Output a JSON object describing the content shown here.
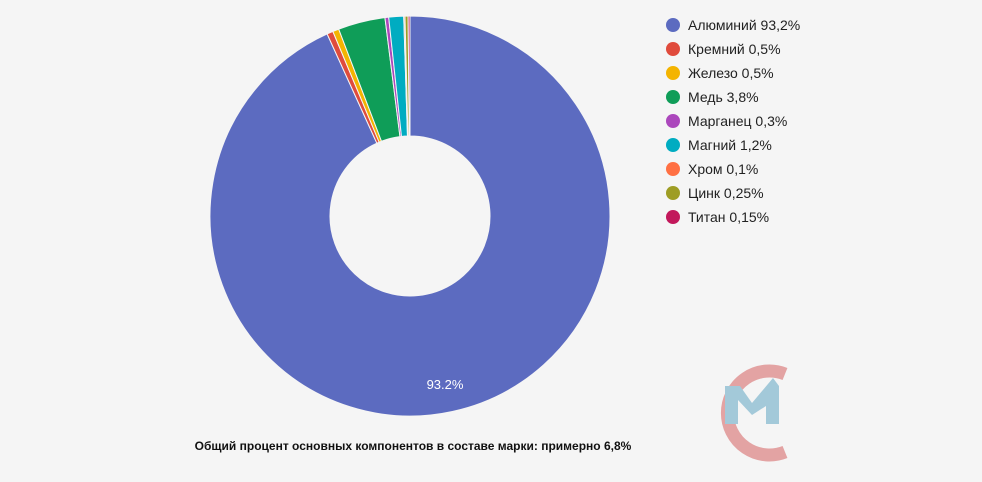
{
  "chart_data": {
    "type": "pie",
    "donut": true,
    "series": [
      {
        "name": "Алюминий",
        "value": 93.2,
        "label": "Алюминий 93,2%",
        "color": "#5c6bc0"
      },
      {
        "name": "Кремний",
        "value": 0.5,
        "label": "Кремний 0,5%",
        "color": "#e04b3c"
      },
      {
        "name": "Железо",
        "value": 0.5,
        "label": "Железо 0,5%",
        "color": "#f4b400"
      },
      {
        "name": "Медь",
        "value": 3.8,
        "label": "Медь 3,8%",
        "color": "#0f9d58"
      },
      {
        "name": "Марганец",
        "value": 0.3,
        "label": "Марганец 0,3%",
        "color": "#ab47bc"
      },
      {
        "name": "Магний",
        "value": 1.2,
        "label": "Магний 1,2%",
        "color": "#00acc1"
      },
      {
        "name": "Хром",
        "value": 0.1,
        "label": "Хром 0,1%",
        "color": "#ff7043"
      },
      {
        "name": "Цинк",
        "value": 0.25,
        "label": "Цинк 0,25%",
        "color": "#9e9d24"
      },
      {
        "name": "Титан",
        "value": 0.15,
        "label": "Титан 0,15%",
        "color": "#c2185b"
      }
    ],
    "slice_labels": [
      "93.2%"
    ],
    "legend_position": "right"
  },
  "footer": "Общий процент основных компонентов в составе марки: примерно 6,8%",
  "logo": {
    "colors": [
      "#e3a3a3",
      "#a3c9d9"
    ]
  }
}
